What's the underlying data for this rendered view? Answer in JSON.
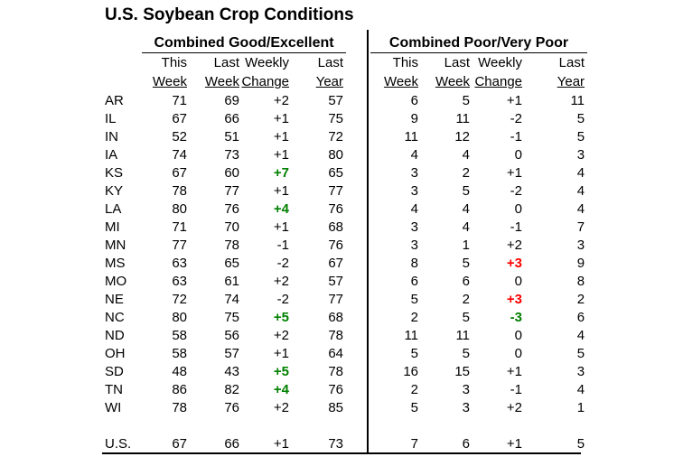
{
  "title": "U.S. Soybean Crop Conditions",
  "sections": {
    "good_excellent": "Combined Good/Excellent",
    "poor_very_poor": "Combined Poor/Very Poor"
  },
  "columns": {
    "line1": [
      "This",
      "Last",
      "Weekly",
      "Last"
    ],
    "line2": [
      "Week",
      "Week",
      "Change",
      "Year"
    ]
  },
  "colors": {
    "improvement_green": "#008000",
    "deterioration_red": "#FF0000",
    "text_black": "#000000",
    "background": "#FFFFFF"
  },
  "chart_data": {
    "type": "table",
    "title": "U.S. Soybean Crop Conditions",
    "column_groups": [
      "Combined Good/Excellent",
      "Combined Poor/Very Poor"
    ],
    "columns": [
      "This Week",
      "Last Week",
      "Weekly Change",
      "Last Year"
    ],
    "rows": [
      {
        "state": "AR",
        "good_excellent": [
          71,
          69,
          "+2",
          57
        ],
        "ge_change_highlight": "none",
        "poor_very_poor": [
          6,
          5,
          "+1",
          11
        ],
        "pp_change_highlight": "none"
      },
      {
        "state": "IL",
        "good_excellent": [
          67,
          66,
          "+1",
          75
        ],
        "ge_change_highlight": "none",
        "poor_very_poor": [
          9,
          11,
          "-2",
          5
        ],
        "pp_change_highlight": "none"
      },
      {
        "state": "IN",
        "good_excellent": [
          52,
          51,
          "+1",
          72
        ],
        "ge_change_highlight": "none",
        "poor_very_poor": [
          11,
          12,
          "-1",
          5
        ],
        "pp_change_highlight": "none"
      },
      {
        "state": "IA",
        "good_excellent": [
          74,
          73,
          "+1",
          80
        ],
        "ge_change_highlight": "none",
        "poor_very_poor": [
          4,
          4,
          "0",
          3
        ],
        "pp_change_highlight": "none"
      },
      {
        "state": "KS",
        "good_excellent": [
          67,
          60,
          "+7",
          65
        ],
        "ge_change_highlight": "green",
        "poor_very_poor": [
          3,
          2,
          "+1",
          4
        ],
        "pp_change_highlight": "none"
      },
      {
        "state": "KY",
        "good_excellent": [
          78,
          77,
          "+1",
          77
        ],
        "ge_change_highlight": "none",
        "poor_very_poor": [
          3,
          5,
          "-2",
          4
        ],
        "pp_change_highlight": "none"
      },
      {
        "state": "LA",
        "good_excellent": [
          80,
          76,
          "+4",
          76
        ],
        "ge_change_highlight": "green",
        "poor_very_poor": [
          4,
          4,
          "0",
          4
        ],
        "pp_change_highlight": "none"
      },
      {
        "state": "MI",
        "good_excellent": [
          71,
          70,
          "+1",
          68
        ],
        "ge_change_highlight": "none",
        "poor_very_poor": [
          3,
          4,
          "-1",
          7
        ],
        "pp_change_highlight": "none"
      },
      {
        "state": "MN",
        "good_excellent": [
          77,
          78,
          "-1",
          76
        ],
        "ge_change_highlight": "none",
        "poor_very_poor": [
          3,
          1,
          "+2",
          3
        ],
        "pp_change_highlight": "none"
      },
      {
        "state": "MS",
        "good_excellent": [
          63,
          65,
          "-2",
          67
        ],
        "ge_change_highlight": "none",
        "poor_very_poor": [
          8,
          5,
          "+3",
          9
        ],
        "pp_change_highlight": "red"
      },
      {
        "state": "MO",
        "good_excellent": [
          63,
          61,
          "+2",
          57
        ],
        "ge_change_highlight": "none",
        "poor_very_poor": [
          6,
          6,
          "0",
          8
        ],
        "pp_change_highlight": "none"
      },
      {
        "state": "NE",
        "good_excellent": [
          72,
          74,
          "-2",
          77
        ],
        "ge_change_highlight": "none",
        "poor_very_poor": [
          5,
          2,
          "+3",
          2
        ],
        "pp_change_highlight": "red"
      },
      {
        "state": "NC",
        "good_excellent": [
          80,
          75,
          "+5",
          68
        ],
        "ge_change_highlight": "green",
        "poor_very_poor": [
          2,
          5,
          "-3",
          6
        ],
        "pp_change_highlight": "green"
      },
      {
        "state": "ND",
        "good_excellent": [
          58,
          56,
          "+2",
          78
        ],
        "ge_change_highlight": "none",
        "poor_very_poor": [
          11,
          11,
          "0",
          4
        ],
        "pp_change_highlight": "none"
      },
      {
        "state": "OH",
        "good_excellent": [
          58,
          57,
          "+1",
          64
        ],
        "ge_change_highlight": "none",
        "poor_very_poor": [
          5,
          5,
          "0",
          5
        ],
        "pp_change_highlight": "none"
      },
      {
        "state": "SD",
        "good_excellent": [
          48,
          43,
          "+5",
          78
        ],
        "ge_change_highlight": "green",
        "poor_very_poor": [
          16,
          15,
          "+1",
          3
        ],
        "pp_change_highlight": "none"
      },
      {
        "state": "TN",
        "good_excellent": [
          86,
          82,
          "+4",
          76
        ],
        "ge_change_highlight": "green",
        "poor_very_poor": [
          2,
          3,
          "-1",
          4
        ],
        "pp_change_highlight": "none"
      },
      {
        "state": "WI",
        "good_excellent": [
          78,
          76,
          "+2",
          85
        ],
        "ge_change_highlight": "none",
        "poor_very_poor": [
          5,
          3,
          "+2",
          1
        ],
        "pp_change_highlight": "none"
      }
    ],
    "us_total": {
      "state": "U.S.",
      "good_excellent": [
        67,
        66,
        "+1",
        73
      ],
      "ge_change_highlight": "none",
      "poor_very_poor": [
        7,
        6,
        "+1",
        5
      ],
      "pp_change_highlight": "none"
    }
  }
}
